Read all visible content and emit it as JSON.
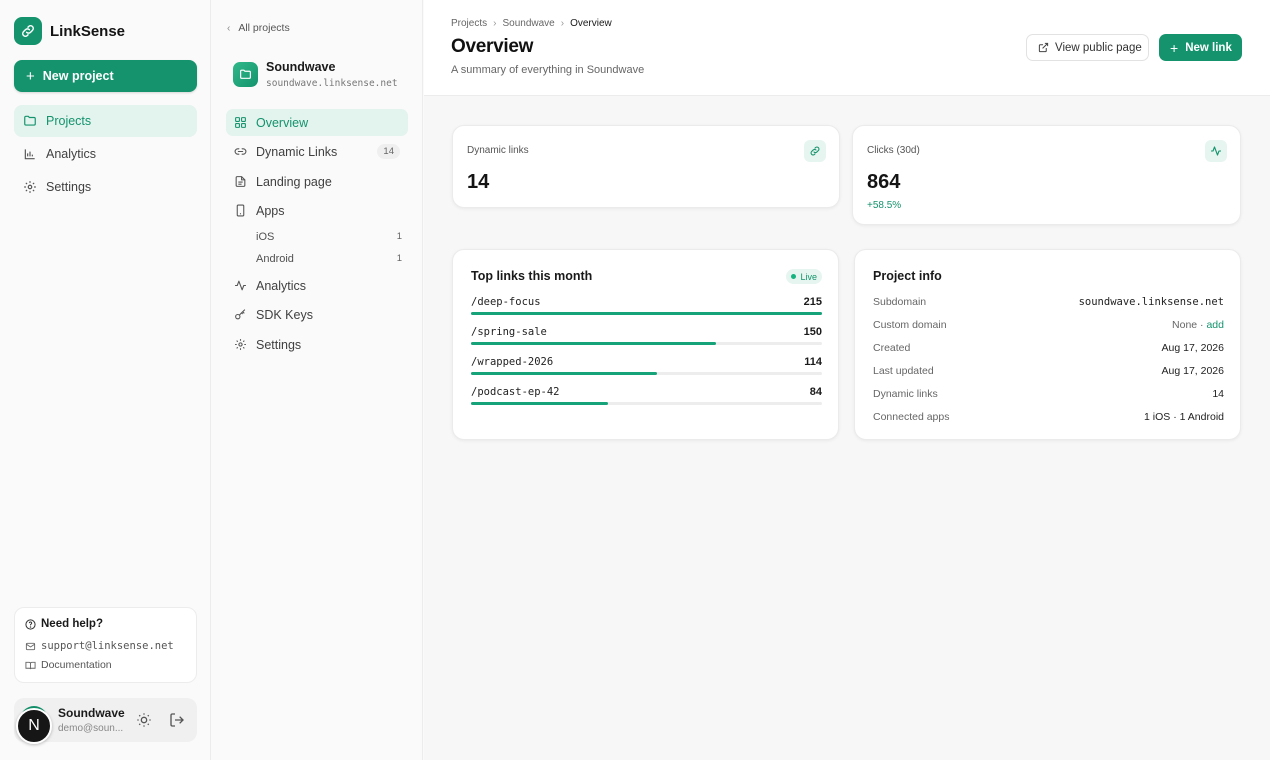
{
  "brand": {
    "name": "LinkSense",
    "accent": "#14936c"
  },
  "sidebar": {
    "new_project": "New project",
    "items": [
      {
        "label": "Projects",
        "icon": "folder-icon"
      },
      {
        "label": "Analytics",
        "icon": "bar-chart-icon"
      },
      {
        "label": "Settings",
        "icon": "gear-icon"
      }
    ],
    "help": {
      "title": "Need help?",
      "email": "support@linksense.net",
      "docs": "Documentation"
    },
    "user": {
      "initial": "N",
      "name": "Soundwave",
      "email": "demo@soun..."
    }
  },
  "project": {
    "back": "All projects",
    "name": "Soundwave",
    "domain": "soundwave.linksense.net",
    "nav": [
      {
        "label": "Overview",
        "icon": "grid-icon"
      },
      {
        "label": "Dynamic Links",
        "icon": "link-icon",
        "badge": "14"
      },
      {
        "label": "Landing page",
        "icon": "document-icon"
      },
      {
        "label": "Apps",
        "icon": "phone-icon"
      },
      {
        "label": "Analytics",
        "icon": "activity-icon"
      },
      {
        "label": "SDK Keys",
        "icon": "key-icon"
      },
      {
        "label": "Settings",
        "icon": "gear-icon"
      }
    ],
    "apps": [
      {
        "label": "iOS",
        "count": "1"
      },
      {
        "label": "Android",
        "count": "1"
      }
    ]
  },
  "header": {
    "breadcrumb": [
      "Projects",
      "Soundwave",
      "Overview"
    ],
    "title": "Overview",
    "subtitle": "A summary of everything in Soundwave",
    "view_public": "View public page",
    "new_link": "New link"
  },
  "stats": {
    "links": {
      "label": "Dynamic links",
      "value": "14",
      "icon": "link-icon"
    },
    "clicks": {
      "label": "Clicks (30d)",
      "value": "864",
      "delta": "+58.5%",
      "icon": "activity-icon"
    }
  },
  "top_links": {
    "title": "Top links this month",
    "badge": "Live",
    "rows": [
      {
        "name": "/deep-focus",
        "count": "215",
        "share": 1.0
      },
      {
        "name": "/spring-sale",
        "count": "150",
        "share": 0.698
      },
      {
        "name": "/wrapped-2026",
        "count": "114",
        "share": 0.53
      },
      {
        "name": "/podcast-ep-42",
        "count": "84",
        "share": 0.391
      }
    ]
  },
  "project_info": {
    "title": "Project info",
    "rows": [
      {
        "key": "Subdomain",
        "value": "soundwave.linksense.net"
      },
      {
        "key": "Custom domain",
        "value": "None",
        "sep": " · ",
        "action": "add"
      },
      {
        "key": "Created",
        "value": "Aug 17, 2026"
      },
      {
        "key": "Last updated",
        "value": "Aug 17, 2026"
      },
      {
        "key": "Dynamic links",
        "value": "14"
      },
      {
        "key": "Connected apps",
        "value": "1 iOS · 1 Android"
      }
    ]
  }
}
